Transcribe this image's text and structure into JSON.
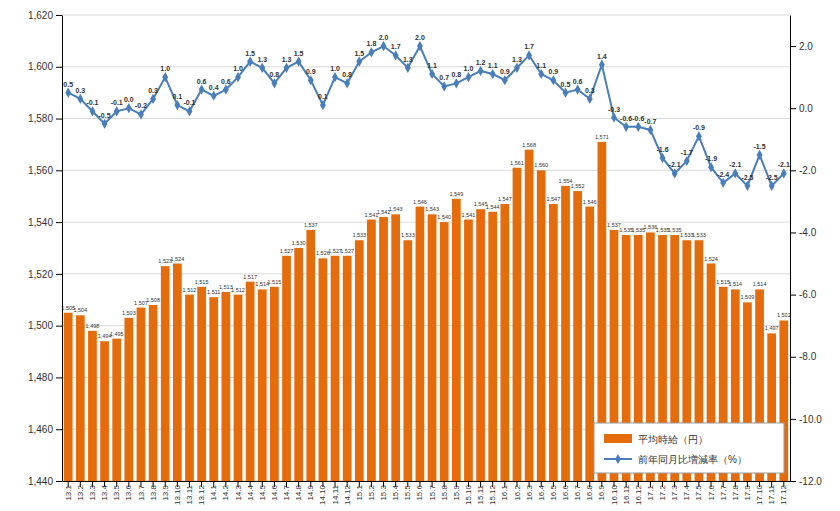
{
  "chart_data": {
    "type": "bar",
    "categories": [
      "13.1",
      "13.2",
      "13.3",
      "13.4",
      "13.5",
      "13.6",
      "13.7",
      "13.8",
      "13.9",
      "13.10",
      "13.11",
      "13.12",
      "14.1",
      "14.2",
      "14.3",
      "14.4",
      "14.5",
      "14.6",
      "14.7",
      "14.8",
      "14.9",
      "14.10",
      "14.11",
      "14.12",
      "15.1",
      "15.2",
      "15.3",
      "15.4",
      "15.5",
      "15.6",
      "15.7",
      "15.8",
      "15.9",
      "15.10",
      "15.11",
      "15.12",
      "16.1",
      "16.2",
      "16.3",
      "16.4",
      "16.5",
      "16.6",
      "16.7",
      "16.8",
      "16.9",
      "16.10",
      "16.11",
      "16.12",
      "17.1",
      "17.2",
      "17.3",
      "17.4",
      "17.5",
      "17.6",
      "17.7",
      "17.8",
      "17.9",
      "17.10",
      "17.11",
      "17.12"
    ],
    "series": [
      {
        "name": "平均時給（円）",
        "type": "bar",
        "color": "#e46c0a",
        "values": [
          1505,
          1504,
          1498,
          1494,
          1495,
          1503,
          1507,
          1508,
          1523,
          1524,
          1512,
          1515,
          1511,
          1513,
          1512,
          1517,
          1514,
          1515,
          1527,
          1530,
          1537,
          1526,
          1527,
          1527,
          1533,
          1541,
          1542,
          1543,
          1533,
          1546,
          1543,
          1540,
          1549,
          1541,
          1545,
          1544,
          1547,
          1561,
          1568,
          1560,
          1547,
          1554,
          1552,
          1546,
          1571,
          1537,
          1535,
          1535,
          1536,
          1535,
          1535,
          1533,
          1533,
          1524,
          1515,
          1514,
          1509,
          1514,
          1497,
          1502
        ],
        "value_labels": [
          "1,505",
          "1,504",
          "1,498",
          "1,494",
          "1,495",
          "1,503",
          "1,507",
          "1,508",
          "1,523",
          "1,524",
          "1,512",
          "1,515",
          "1,511",
          "1,513",
          "1,512",
          "1,517",
          "1,514",
          "1,515",
          "1,527",
          "1,530",
          "1,537",
          "1,526",
          "1,527",
          "1,527",
          "1,533",
          "1,541",
          "1,542",
          "1,543",
          "1,533",
          "1,546",
          "1,543",
          "1,540",
          "1,549",
          "1,541",
          "1,545",
          "1,544",
          "1,547",
          "1,561",
          "1,568",
          "1,560",
          "1,547",
          "1,554",
          "1,552",
          "1,546",
          "1,571",
          "1,537",
          "1,535",
          "1,535",
          "1,536",
          "1,535",
          "1,535",
          "1,533",
          "1,533",
          "1,524",
          "1,515",
          "1,514",
          "1,509",
          "1,514",
          "1,497",
          "1,502"
        ]
      },
      {
        "name": "前年同月比増減率（%）",
        "type": "line",
        "axis": "y2",
        "color": "#4a7ebb",
        "marker": "diamond",
        "values": [
          0.5,
          0.3,
          -0.1,
          -0.5,
          -0.1,
          0.0,
          -0.2,
          0.3,
          1.0,
          0.1,
          -0.1,
          0.6,
          0.4,
          0.6,
          1.0,
          1.5,
          1.3,
          0.8,
          1.3,
          1.5,
          0.9,
          0.1,
          1.0,
          0.8,
          1.5,
          1.8,
          2.0,
          1.7,
          1.3,
          2.0,
          1.1,
          0.7,
          0.8,
          1.0,
          1.2,
          1.1,
          0.9,
          1.3,
          1.7,
          1.1,
          0.9,
          0.5,
          0.6,
          0.3,
          1.4,
          -0.3,
          -0.6,
          -0.6,
          -0.7,
          -1.6,
          -2.1,
          -1.7,
          -0.9,
          -1.9,
          -2.4,
          -2.1,
          -2.5,
          -1.5,
          -2.5,
          -2.1
        ],
        "value_labels": [
          "0.5",
          "0.3",
          "-0.1",
          "-0.5",
          "-0.1",
          "0.0",
          "-0.2",
          "0.3",
          "1.0",
          "0.1",
          "-0.1",
          "0.6",
          "0.4",
          "0.6",
          "1.0",
          "1.5",
          "1.3",
          "0.8",
          "1.3",
          "1.5",
          "0.9",
          "0.1",
          "1.0",
          "0.8",
          "1.5",
          "1.8",
          "2.0",
          "1.7",
          "1.3",
          "2.0",
          "1.1",
          "0.7",
          "0.8",
          "1.0",
          "1.2",
          "1.1",
          "0.9",
          "1.3",
          "1.7",
          "1.1",
          "0.9",
          "0.5",
          "0.6",
          "0.3",
          "1.4",
          "-0.3",
          "-0.6",
          "-0.6",
          "-0.7",
          "-1.6",
          "-2.1",
          "-1.7",
          "-0.9",
          "-1.9",
          "-2.4",
          "-2.1",
          "-2.5",
          "-1.5",
          "-2.5",
          "-2.1"
        ]
      }
    ],
    "ylim": [
      1440,
      1620
    ],
    "yticks": [
      {
        "value": 1440,
        "label": "1,440"
      },
      {
        "value": 1460,
        "label": "1,460"
      },
      {
        "value": 1480,
        "label": "1,480"
      },
      {
        "value": 1500,
        "label": "1,500"
      },
      {
        "value": 1520,
        "label": "1,520"
      },
      {
        "value": 1540,
        "label": "1,540"
      },
      {
        "value": 1560,
        "label": "1,560"
      },
      {
        "value": 1580,
        "label": "1,580"
      },
      {
        "value": 1600,
        "label": "1,600"
      },
      {
        "value": 1620,
        "label": "1,620"
      }
    ],
    "y2lim": [
      -12,
      3
    ],
    "y2ticks": [
      {
        "value": -12,
        "label": "-12.0"
      },
      {
        "value": -10,
        "label": "-10.0"
      },
      {
        "value": -8,
        "label": "-8.0"
      },
      {
        "value": -6,
        "label": "-6.0"
      },
      {
        "value": -4,
        "label": "-4.0"
      },
      {
        "value": -2,
        "label": "-2.0"
      },
      {
        "value": 0,
        "label": "0.0"
      },
      {
        "value": 2,
        "label": "2.0"
      }
    ],
    "grid": true,
    "legend": "lower right",
    "data_labels": true
  }
}
